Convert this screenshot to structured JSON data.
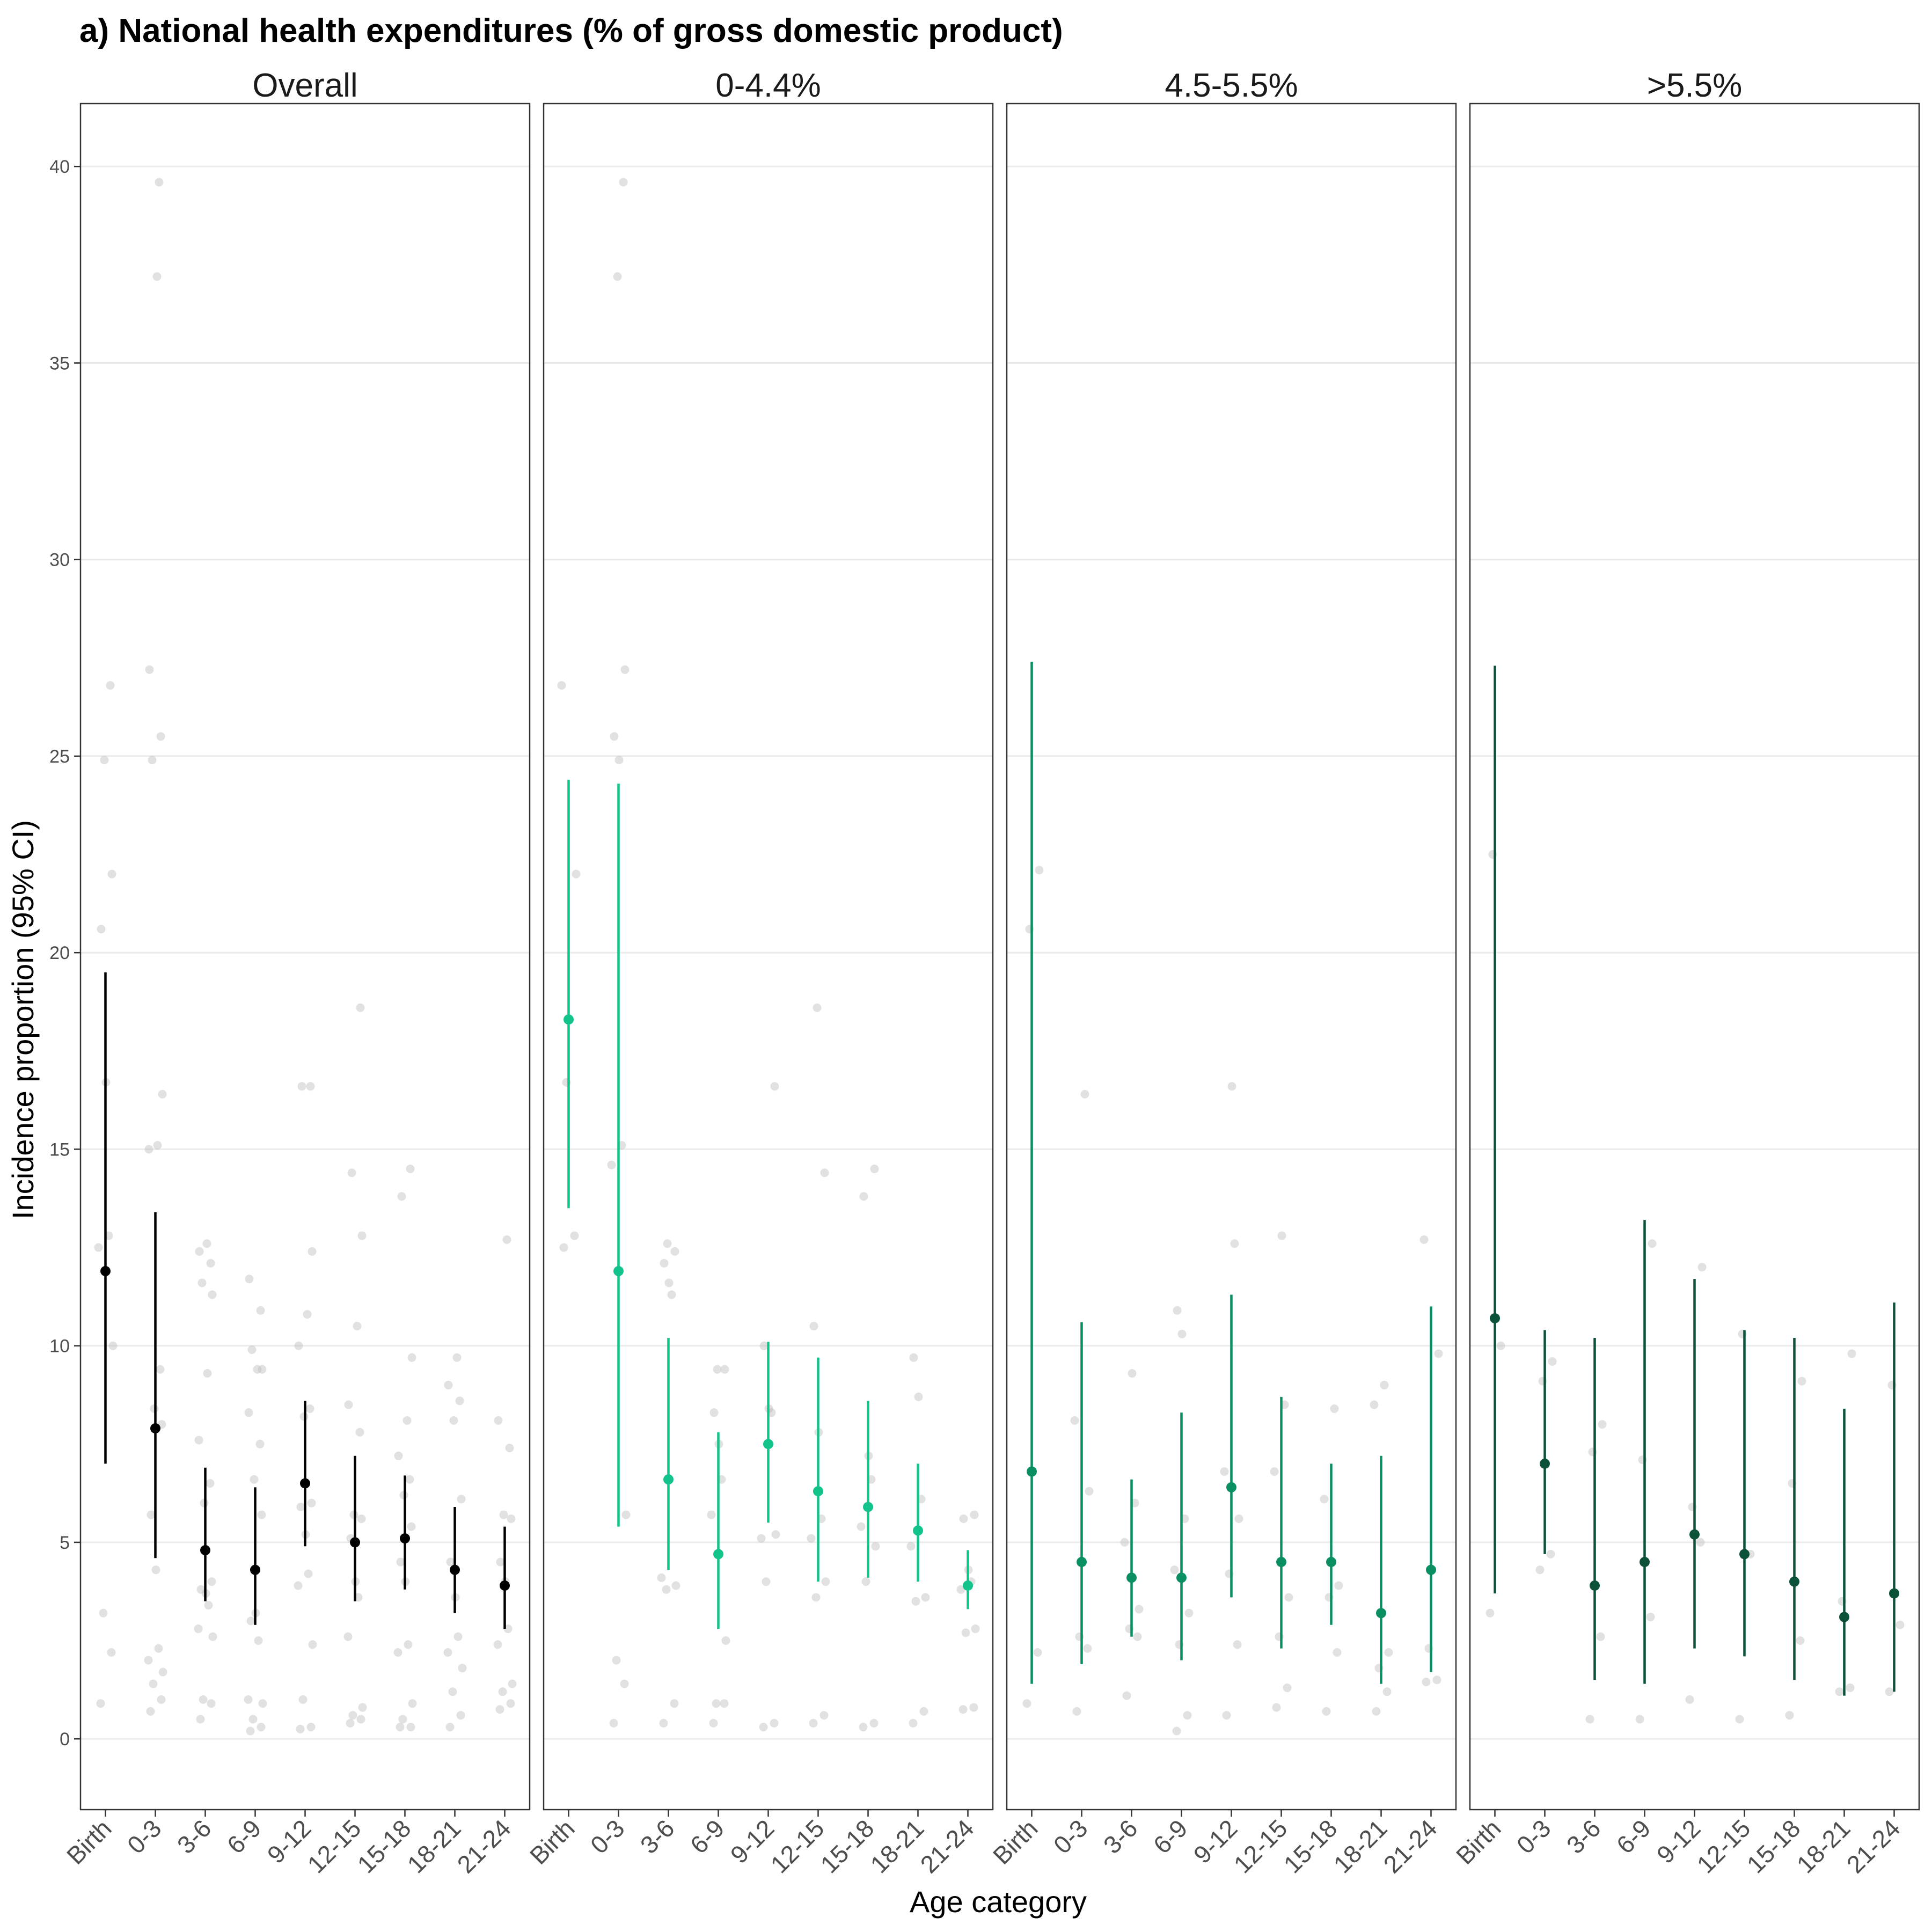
{
  "title": "a) National health expenditures (% of gross domestic product)",
  "chart_data": {
    "type": "scatter",
    "title": "a) National health expenditures (% of gross domestic product)",
    "xlabel": "Age category",
    "ylabel": "Incidence proportion (95% CI)",
    "ylim": [
      -1.8,
      41.6
    ],
    "yticks": [
      0,
      5,
      10,
      15,
      20,
      25,
      30,
      35,
      40
    ],
    "categories": [
      "Birth",
      "0-3",
      "3-6",
      "6-9",
      "9-12",
      "12-15",
      "15-18",
      "18-21",
      "21-24"
    ],
    "grid": "horizontal major",
    "legend": "none",
    "raw_point_color": "#bdbdbd",
    "panels": [
      {
        "label": "Overall",
        "color": "#000000",
        "estimates": [
          {
            "category": "Birth",
            "estimate": 11.9,
            "lower": 7.0,
            "upper": 19.5
          },
          {
            "category": "0-3",
            "estimate": 7.9,
            "lower": 4.6,
            "upper": 13.4
          },
          {
            "category": "3-6",
            "estimate": 4.8,
            "lower": 3.5,
            "upper": 6.9
          },
          {
            "category": "6-9",
            "estimate": 4.3,
            "lower": 2.9,
            "upper": 6.4
          },
          {
            "category": "9-12",
            "estimate": 6.5,
            "lower": 4.9,
            "upper": 8.6
          },
          {
            "category": "12-15",
            "estimate": 5.0,
            "lower": 3.5,
            "upper": 7.2
          },
          {
            "category": "15-18",
            "estimate": 5.1,
            "lower": 3.8,
            "upper": 6.7
          },
          {
            "category": "18-21",
            "estimate": 4.3,
            "lower": 3.2,
            "upper": 5.9
          },
          {
            "category": "21-24",
            "estimate": 3.9,
            "lower": 2.8,
            "upper": 5.4
          }
        ],
        "raw": [
          [
            0.9,
            2.2,
            3.2,
            10.0,
            12.5,
            12.8,
            16.7,
            20.6,
            22.0,
            24.9,
            26.8
          ],
          [
            0.7,
            1.0,
            1.4,
            1.7,
            2.0,
            2.3,
            4.3,
            5.7,
            8.0,
            8.4,
            9.4,
            15.0,
            15.1,
            16.4,
            24.9,
            25.5,
            27.2,
            37.2,
            39.6
          ],
          [
            0.5,
            0.9,
            1.0,
            2.6,
            2.8,
            3.4,
            3.7,
            3.8,
            4.0,
            6.0,
            6.5,
            7.6,
            9.3,
            11.3,
            11.6,
            12.1,
            12.4,
            12.6
          ],
          [
            0.2,
            0.3,
            0.5,
            0.9,
            1.0,
            2.5,
            3.2,
            3.0,
            5.7,
            6.6,
            7.5,
            8.3,
            9.4,
            9.4,
            9.9,
            10.9,
            11.7
          ],
          [
            0.25,
            0.3,
            1.0,
            2.4,
            3.9,
            4.2,
            5.2,
            5.9,
            6.0,
            8.2,
            8.4,
            10.0,
            10.8,
            12.4,
            16.6,
            16.6
          ],
          [
            0.4,
            0.5,
            0.6,
            0.8,
            2.6,
            3.6,
            4.0,
            5.1,
            5.6,
            5.7,
            7.8,
            8.5,
            10.5,
            12.8,
            14.4,
            18.6
          ],
          [
            0.3,
            0.3,
            0.5,
            0.9,
            2.2,
            2.4,
            4.0,
            4.5,
            5.4,
            6.2,
            6.6,
            7.2,
            8.1,
            9.7,
            13.8,
            14.5
          ],
          [
            0.3,
            0.6,
            1.2,
            1.8,
            2.2,
            2.6,
            3.6,
            4.5,
            6.1,
            8.1,
            8.6,
            9.0,
            9.7
          ],
          [
            0.75,
            0.9,
            1.2,
            1.4,
            2.4,
            2.8,
            4.0,
            4.5,
            5.6,
            5.7,
            7.4,
            8.1,
            12.7
          ]
        ]
      },
      {
        "label": "0-4.4%",
        "color": "#12c48b",
        "estimates": [
          {
            "category": "Birth",
            "estimate": 18.3,
            "lower": 13.5,
            "upper": 24.4
          },
          {
            "category": "0-3",
            "estimate": 11.9,
            "lower": 5.4,
            "upper": 24.3
          },
          {
            "category": "3-6",
            "estimate": 6.6,
            "lower": 4.3,
            "upper": 10.2
          },
          {
            "category": "6-9",
            "estimate": 4.7,
            "lower": 2.8,
            "upper": 7.8
          },
          {
            "category": "9-12",
            "estimate": 7.5,
            "lower": 5.5,
            "upper": 10.1
          },
          {
            "category": "12-15",
            "estimate": 6.3,
            "lower": 4.0,
            "upper": 9.7
          },
          {
            "category": "15-18",
            "estimate": 5.9,
            "lower": 4.1,
            "upper": 8.6
          },
          {
            "category": "18-21",
            "estimate": 5.3,
            "lower": 4.0,
            "upper": 7.0
          },
          {
            "category": "21-24",
            "estimate": 3.9,
            "lower": 3.3,
            "upper": 4.8
          }
        ],
        "raw": [
          [
            12.5,
            12.8,
            16.7,
            22.0,
            26.8
          ],
          [
            0.4,
            1.4,
            2.0,
            5.7,
            14.6,
            15.1,
            24.9,
            25.5,
            27.2,
            37.2,
            39.6
          ],
          [
            0.4,
            0.9,
            3.8,
            3.9,
            4.1,
            11.3,
            11.6,
            12.1,
            12.4,
            12.6
          ],
          [
            0.4,
            0.9,
            0.9,
            2.5,
            5.7,
            6.6,
            7.5,
            8.3,
            9.4,
            9.4
          ],
          [
            0.3,
            0.4,
            4.0,
            5.2,
            5.1,
            8.3,
            8.4,
            10.0,
            16.6
          ],
          [
            0.4,
            0.6,
            3.6,
            4.0,
            5.1,
            5.6,
            7.8,
            10.5,
            14.4,
            18.6
          ],
          [
            0.3,
            0.4,
            4.0,
            4.9,
            5.4,
            6.6,
            7.2,
            13.8,
            14.5
          ],
          [
            0.4,
            0.7,
            3.5,
            3.6,
            4.9,
            6.1,
            8.7,
            9.7
          ],
          [
            0.75,
            0.8,
            2.7,
            2.8,
            3.8,
            4.0,
            4.3,
            5.6,
            5.7
          ]
        ]
      },
      {
        "label": "4.5-5.5%",
        "color": "#0a8f62",
        "estimates": [
          {
            "category": "Birth",
            "estimate": 6.8,
            "lower": 1.4,
            "upper": 27.4
          },
          {
            "category": "0-3",
            "estimate": 4.5,
            "lower": 1.9,
            "upper": 10.6
          },
          {
            "category": "3-6",
            "estimate": 4.1,
            "lower": 2.6,
            "upper": 6.6
          },
          {
            "category": "6-9",
            "estimate": 4.1,
            "lower": 2.0,
            "upper": 8.3
          },
          {
            "category": "9-12",
            "estimate": 6.4,
            "lower": 3.6,
            "upper": 11.3
          },
          {
            "category": "12-15",
            "estimate": 4.5,
            "lower": 2.3,
            "upper": 8.7
          },
          {
            "category": "15-18",
            "estimate": 4.5,
            "lower": 2.9,
            "upper": 7.0
          },
          {
            "category": "18-21",
            "estimate": 3.2,
            "lower": 1.4,
            "upper": 7.2
          },
          {
            "category": "21-24",
            "estimate": 4.3,
            "lower": 1.7,
            "upper": 11.0
          }
        ],
        "raw": [
          [
            0.9,
            2.2,
            20.6,
            22.1
          ],
          [
            0.7,
            2.3,
            2.6,
            6.3,
            8.1,
            16.4
          ],
          [
            1.1,
            2.6,
            2.8,
            3.3,
            5.0,
            6.0,
            9.3
          ],
          [
            0.2,
            0.6,
            2.4,
            3.2,
            4.3,
            5.6,
            10.3,
            10.9
          ],
          [
            0.6,
            2.4,
            4.2,
            5.6,
            6.8,
            12.6,
            16.6
          ],
          [
            0.8,
            1.3,
            2.6,
            3.6,
            6.8,
            8.5,
            12.8
          ],
          [
            0.7,
            2.2,
            3.6,
            3.9,
            6.1,
            8.4
          ],
          [
            0.7,
            1.2,
            1.8,
            2.2,
            8.5,
            9.0
          ],
          [
            1.45,
            1.5,
            2.3,
            9.8,
            12.7
          ]
        ]
      },
      {
        "label": ">5.5%",
        "color": "#0b5238",
        "estimates": [
          {
            "category": "Birth",
            "estimate": 10.7,
            "lower": 3.7,
            "upper": 27.3
          },
          {
            "category": "0-3",
            "estimate": 7.0,
            "lower": 4.7,
            "upper": 10.4
          },
          {
            "category": "3-6",
            "estimate": 3.9,
            "lower": 1.5,
            "upper": 10.2
          },
          {
            "category": "6-9",
            "estimate": 4.5,
            "lower": 1.4,
            "upper": 13.2
          },
          {
            "category": "9-12",
            "estimate": 5.2,
            "lower": 2.3,
            "upper": 11.7
          },
          {
            "category": "12-15",
            "estimate": 4.7,
            "lower": 2.1,
            "upper": 10.4
          },
          {
            "category": "15-18",
            "estimate": 4.0,
            "lower": 1.5,
            "upper": 10.2
          },
          {
            "category": "18-21",
            "estimate": 3.1,
            "lower": 1.1,
            "upper": 8.4
          },
          {
            "category": "21-24",
            "estimate": 3.7,
            "lower": 1.2,
            "upper": 11.1
          }
        ],
        "raw": [
          [
            3.2,
            10.0,
            22.5
          ],
          [
            4.3,
            4.7,
            9.1,
            9.6
          ],
          [
            0.5,
            2.6,
            7.3,
            8.0
          ],
          [
            0.5,
            3.1,
            7.1,
            12.6
          ],
          [
            1.0,
            5.0,
            5.9,
            12.0
          ],
          [
            0.5,
            4.7,
            10.3
          ],
          [
            0.6,
            2.5,
            6.5,
            9.1
          ],
          [
            1.2,
            1.3,
            3.5,
            9.8
          ],
          [
            1.2,
            2.9,
            9.0
          ]
        ]
      }
    ]
  }
}
